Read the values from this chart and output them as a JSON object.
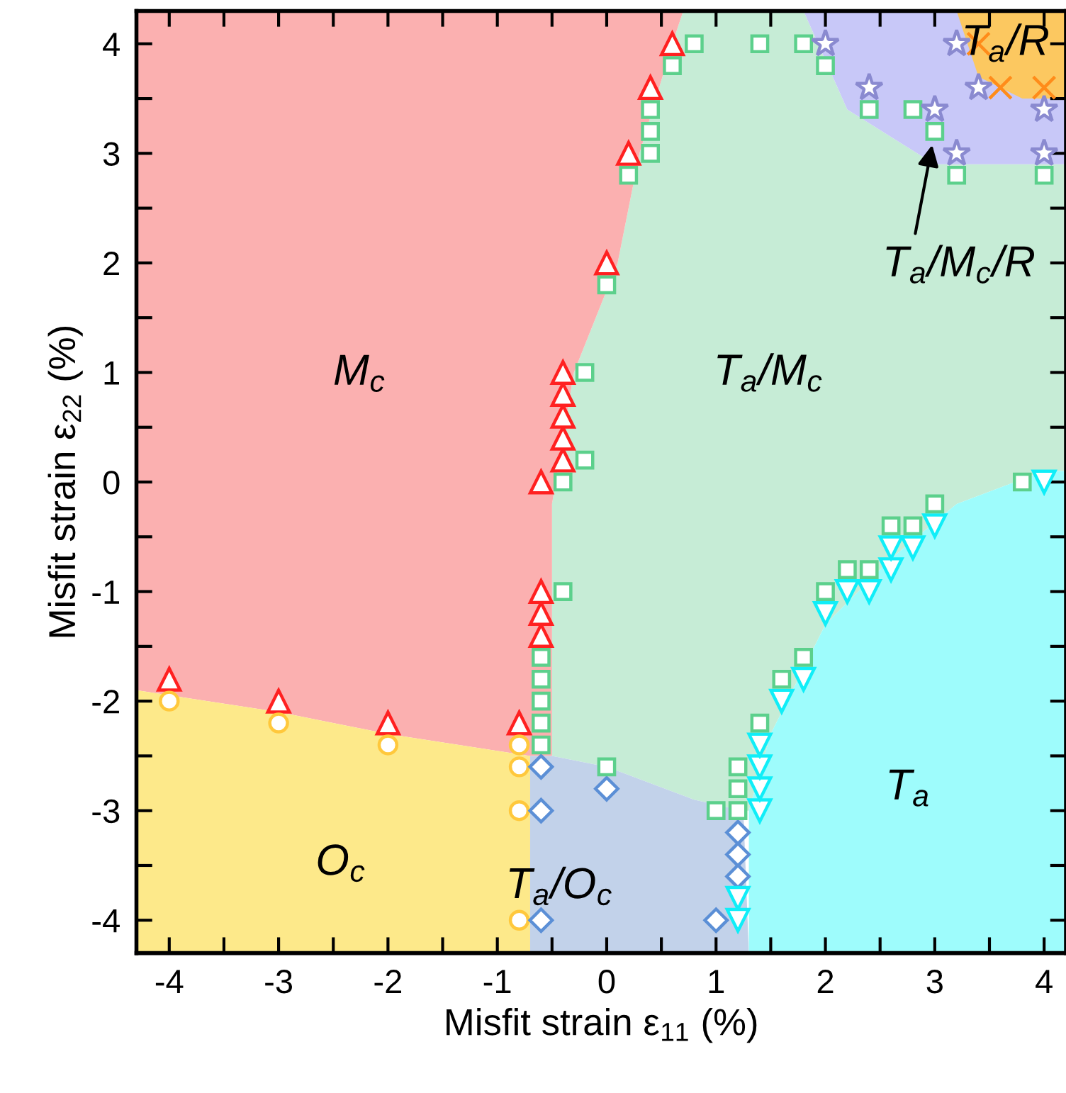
{
  "chart_data": {
    "type": "scatter",
    "xlabel": "Misfit strain ε$_{11}$ (%)",
    "ylabel": "Misfit strain ε$_{22}$ (%)",
    "xlim": [
      -4.3,
      4.2
    ],
    "ylim": [
      -4.3,
      4.3
    ],
    "xticks": [
      -4,
      {
        "value": -3.5,
        "label": null
      },
      -3,
      {
        "value": -2.5,
        "label": null
      },
      -2,
      {
        "value": -1.5,
        "label": null
      },
      -1,
      {
        "value": -0.5,
        "label": null
      },
      0,
      {
        "value": 0.5,
        "label": null
      },
      1,
      {
        "value": 1.5,
        "label": null
      },
      2,
      {
        "value": 2.5,
        "label": null
      },
      3,
      {
        "value": 3.5,
        "label": null
      },
      4
    ],
    "yticks": [
      -4,
      {
        "value": -3.5,
        "label": null
      },
      -3,
      {
        "value": -2.5,
        "label": null
      },
      -2,
      {
        "value": -1.5,
        "label": null
      },
      -1,
      {
        "value": -0.5,
        "label": null
      },
      0,
      {
        "value": 0.5,
        "label": null
      },
      1,
      {
        "value": 1.5,
        "label": null
      },
      2,
      {
        "value": 2.5,
        "label": null
      },
      3,
      {
        "value": 3.5,
        "label": null
      },
      4
    ],
    "grid": false,
    "legend": false,
    "series": [
      {
        "color": "#ff2020",
        "marker": "triangle",
        "x": [
          -4,
          -3,
          -2,
          -0.8,
          -0.6,
          -0.6,
          -0.6,
          -0.6,
          -0.4,
          -0.4,
          -0.4,
          -0.4,
          -0.4,
          0,
          0.2,
          0.4,
          0.6
        ],
        "values": [
          -1.8,
          -2.0,
          -2.2,
          -2.2,
          -1.4,
          -1.2,
          -1.0,
          0.0,
          0.2,
          0.4,
          0.6,
          0.8,
          1.0,
          2.0,
          3.0,
          3.6,
          4.0
        ]
      },
      {
        "color": "#ffc83c",
        "marker": "circle",
        "x": [
          -4,
          -3,
          -2,
          -0.8,
          -0.8,
          -0.8,
          -0.8
        ],
        "values": [
          -2.0,
          -2.2,
          -2.4,
          -2.4,
          -2.6,
          -3.0,
          -4.0
        ]
      },
      {
        "color": "#5b8fd6",
        "marker": "diamond",
        "x": [
          -0.6,
          -0.6,
          -0.6,
          0,
          1.0,
          1.2,
          1.2,
          1.2
        ],
        "values": [
          -2.6,
          -3.0,
          -4.0,
          -2.8,
          -4.0,
          -3.2,
          -3.4,
          -3.6
        ]
      },
      {
        "color": "#10eef8",
        "marker": "triangle-down",
        "x": [
          1.2,
          1.2,
          1.4,
          1.4,
          1.4,
          1.4,
          1.6,
          1.8,
          2.0,
          2.2,
          2.4,
          2.6,
          2.6,
          2.8,
          3.0,
          4.0
        ],
        "values": [
          -3.8,
          -4.0,
          -3.0,
          -2.8,
          -2.6,
          -2.4,
          -2.0,
          -1.8,
          -1.2,
          -1.0,
          -1.0,
          -0.8,
          -0.6,
          -0.6,
          -0.4,
          0.0
        ]
      },
      {
        "color": "#5cd08c",
        "marker": "square",
        "x": [
          -0.6,
          -0.6,
          -0.6,
          -0.6,
          -0.6,
          -0.4,
          -0.4,
          -0.2,
          -0.2,
          0,
          0,
          0.2,
          0.4,
          0.4,
          0.4,
          0.6,
          0.8,
          1.4,
          1.8,
          2.0,
          2.4,
          2.8,
          3.0,
          3.2,
          4.0,
          1.0,
          1.2,
          1.2,
          1.2,
          1.4,
          1.6,
          1.8,
          2.0,
          2.2,
          2.4,
          2.6,
          2.8,
          3.0,
          3.8
        ],
        "values": [
          -1.6,
          -1.8,
          -2.0,
          -2.2,
          -2.4,
          -1.0,
          0.0,
          0.2,
          1.0,
          1.8,
          -2.6,
          2.8,
          3.0,
          3.2,
          3.4,
          3.8,
          4.0,
          4.0,
          4.0,
          3.8,
          3.4,
          3.4,
          3.2,
          2.8,
          2.8,
          -3.0,
          -3.0,
          -2.8,
          -2.6,
          -2.2,
          -1.8,
          -1.6,
          -1.0,
          -0.8,
          -0.8,
          -0.4,
          -0.4,
          -0.2,
          0.0
        ]
      },
      {
        "color": "#8a8ad0",
        "marker": "star",
        "x": [
          2.0,
          2.4,
          3.0,
          3.2,
          3.4,
          4.0,
          3.2,
          4.0
        ],
        "values": [
          4.0,
          3.6,
          3.4,
          4.0,
          3.6,
          3.4,
          3.0,
          3.0
        ]
      },
      {
        "color": "#ff8c1a",
        "marker": "cross",
        "x": [
          3.4,
          3.6,
          4.0
        ],
        "values": [
          4.0,
          3.6,
          3.6
        ]
      }
    ],
    "annotations": [
      "M$_{c}$",
      "T$_{a}$/M$_{c}$",
      "O$_{c}$",
      "T$_{a}$/O$_{c}$",
      "T$_{a}$",
      "T$_{a}$/R",
      {
        "text": "T$_{a}$/M$_{c}$/R",
        "x": 3.0,
        "y": 3.2
      }
    ]
  }
}
